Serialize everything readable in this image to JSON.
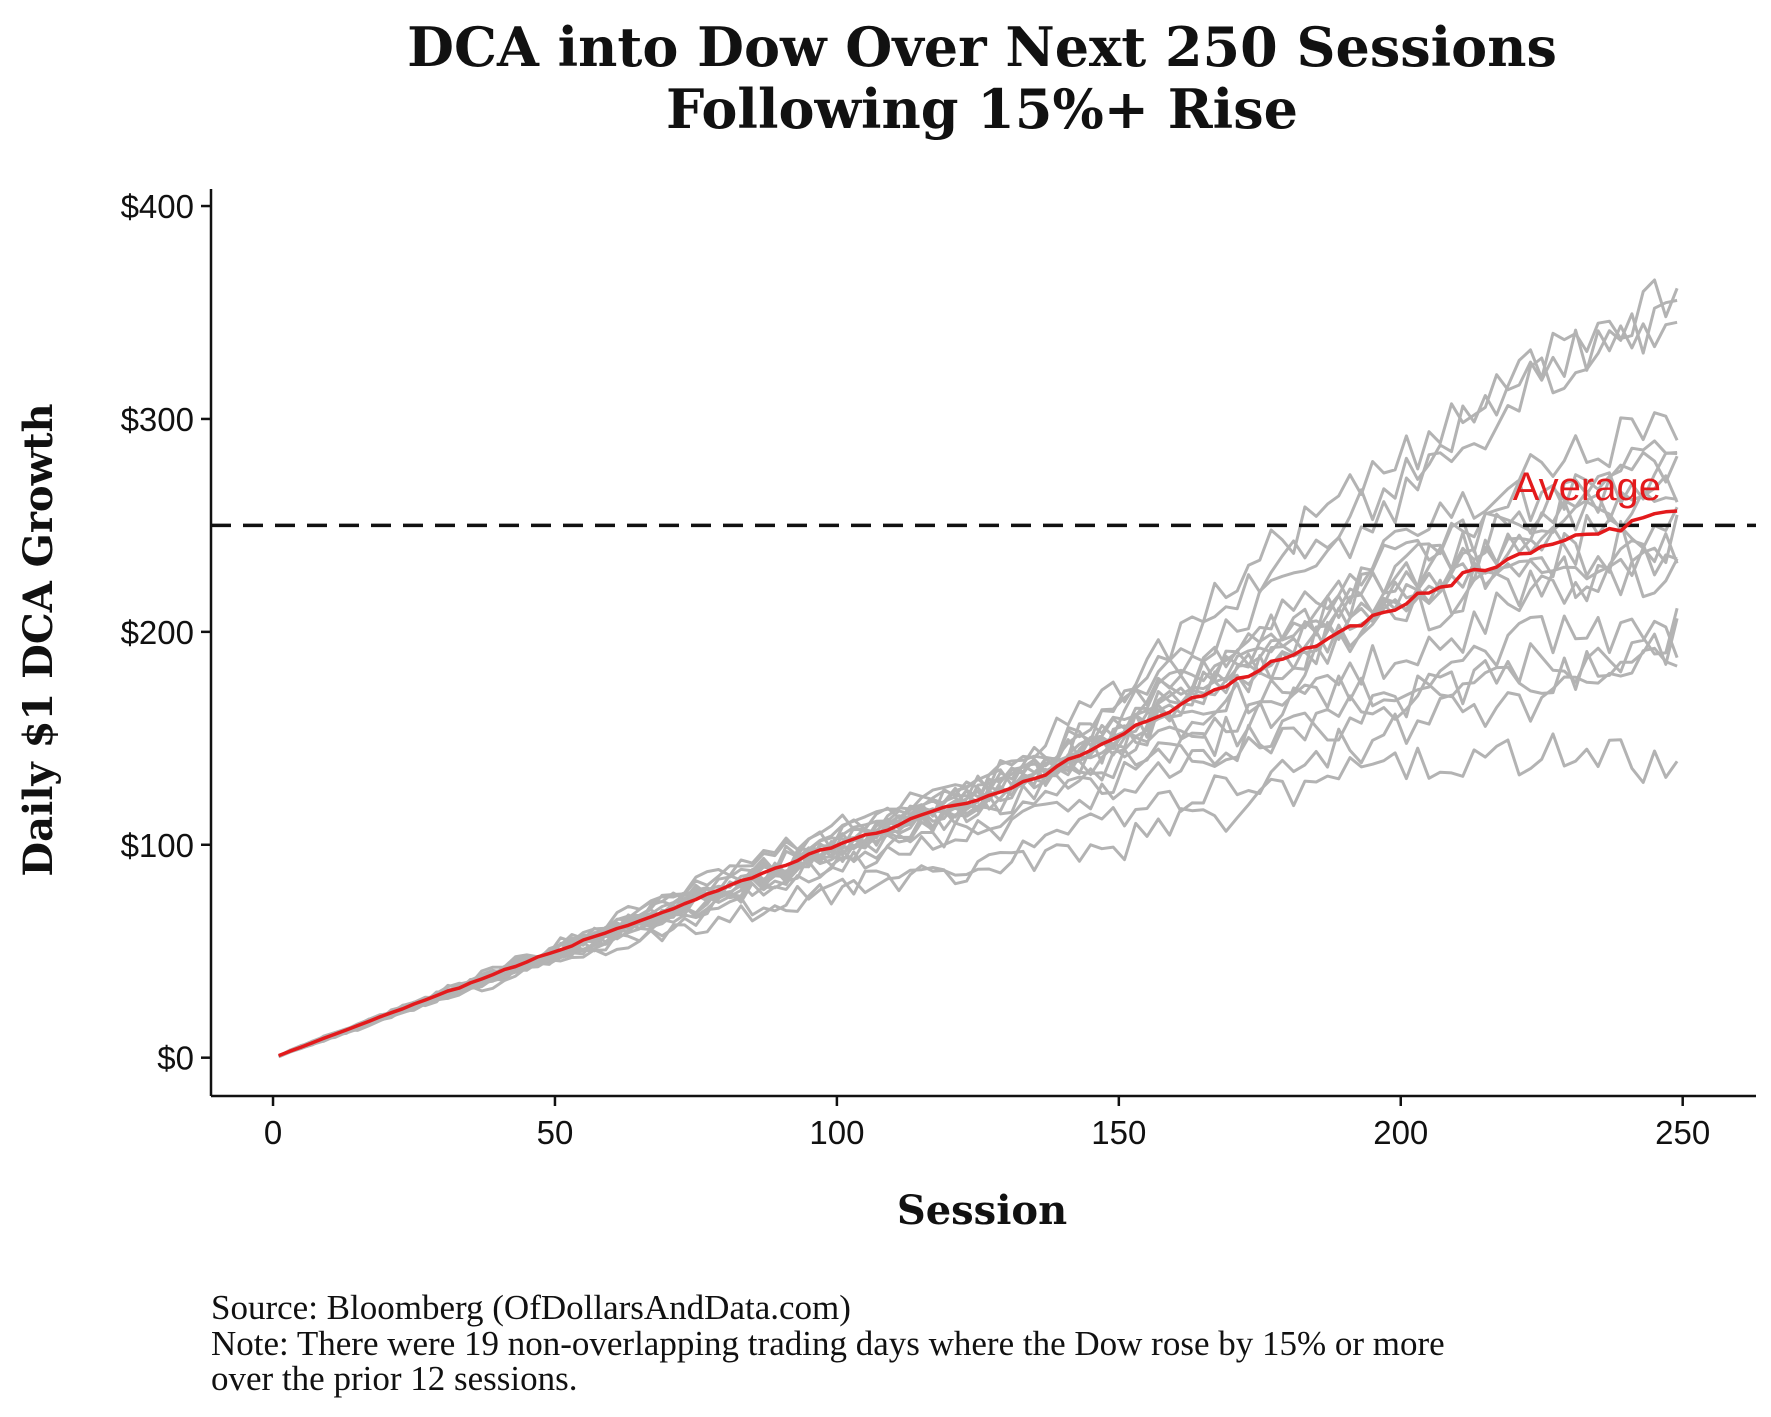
{
  "chart_data": {
    "type": "line",
    "title_lines": [
      "DCA into Dow Over Next 250 Sessions",
      "Following 15%+ Rise"
    ],
    "xlabel": "Session",
    "ylabel": "Daily $1 DCA Growth",
    "xlim": [
      -11,
      263
    ],
    "ylim": [
      -18,
      408
    ],
    "x_ticks": [
      {
        "value": 0,
        "label": "0"
      },
      {
        "value": 50,
        "label": "50"
      },
      {
        "value": 100,
        "label": "100"
      },
      {
        "value": 150,
        "label": "150"
      },
      {
        "value": 200,
        "label": "200"
      },
      {
        "value": 250,
        "label": "250"
      }
    ],
    "y_ticks": [
      {
        "value": 0,
        "label": "$0"
      },
      {
        "value": 100,
        "label": "$100"
      },
      {
        "value": 200,
        "label": "$200"
      },
      {
        "value": 300,
        "label": "$300"
      },
      {
        "value": 400,
        "label": "$400"
      }
    ],
    "grid": false,
    "reference_line": {
      "y": 250,
      "style": "dashed",
      "color": "#111111"
    },
    "average_label": "Average",
    "average_label_at": {
      "x": 233,
      "y": 262
    },
    "average_series": {
      "color": "#e31a1c",
      "x": [
        1,
        25,
        50,
        75,
        100,
        125,
        135,
        150,
        175,
        200,
        212,
        225,
        240,
        250
      ],
      "y": [
        1,
        25,
        50,
        74,
        100,
        122,
        130,
        152,
        183,
        213,
        227,
        240,
        249,
        260
      ]
    },
    "individual_series": {
      "color": "#b3b3b3",
      "count": 19,
      "x": [
        1,
        25,
        50,
        75,
        100,
        125,
        150,
        175,
        200,
        225,
        250
      ],
      "series_y": [
        [
          1,
          25,
          53,
          82,
          108,
          128,
          172,
          235,
          280,
          325,
          350
        ],
        [
          1,
          25,
          51,
          78,
          104,
          125,
          165,
          225,
          270,
          330,
          360
        ],
        [
          1,
          26,
          52,
          80,
          106,
          130,
          160,
          212,
          262,
          320,
          348
        ],
        [
          1,
          25,
          50,
          76,
          101,
          126,
          160,
          200,
          240,
          275,
          300
        ],
        [
          1,
          24,
          49,
          74,
          99,
          122,
          158,
          198,
          235,
          265,
          288
        ],
        [
          1,
          25,
          50,
          75,
          100,
          124,
          162,
          196,
          230,
          258,
          280
        ],
        [
          1,
          24,
          48,
          73,
          98,
          122,
          150,
          190,
          228,
          255,
          275
        ],
        [
          1,
          25,
          49,
          74,
          100,
          125,
          155,
          192,
          225,
          250,
          270
        ],
        [
          1,
          24,
          49,
          75,
          100,
          122,
          150,
          185,
          220,
          248,
          265
        ],
        [
          1,
          25,
          51,
          76,
          101,
          123,
          148,
          180,
          215,
          240,
          255
        ],
        [
          1,
          25,
          50,
          74,
          99,
          120,
          148,
          178,
          210,
          235,
          245
        ],
        [
          1,
          24,
          48,
          73,
          98,
          119,
          150,
          182,
          212,
          232,
          240
        ],
        [
          1,
          24,
          47,
          71,
          95,
          115,
          145,
          172,
          208,
          225,
          236
        ],
        [
          1,
          24,
          47,
          70,
          90,
          110,
          130,
          160,
          190,
          215,
          230
        ],
        [
          1,
          25,
          48,
          72,
          96,
          116,
          140,
          165,
          175,
          200,
          200
        ],
        [
          1,
          25,
          49,
          72,
          92,
          105,
          125,
          150,
          170,
          185,
          195
        ],
        [
          1,
          24,
          46,
          66,
          80,
          90,
          112,
          132,
          155,
          170,
          185
        ],
        [
          1,
          23,
          44,
          62,
          78,
          88,
          100,
          120,
          140,
          145,
          133
        ],
        [
          1,
          24,
          47,
          70,
          95,
          118,
          140,
          145,
          170,
          180,
          195
        ]
      ]
    }
  },
  "footer": {
    "source": "Source:  Bloomberg (OfDollarsAndData.com)",
    "note_line1": "Note: There were 19 non-overlapping trading days where the Dow rose by 15% or more",
    "note_line2": "over the prior 12 sessions."
  }
}
